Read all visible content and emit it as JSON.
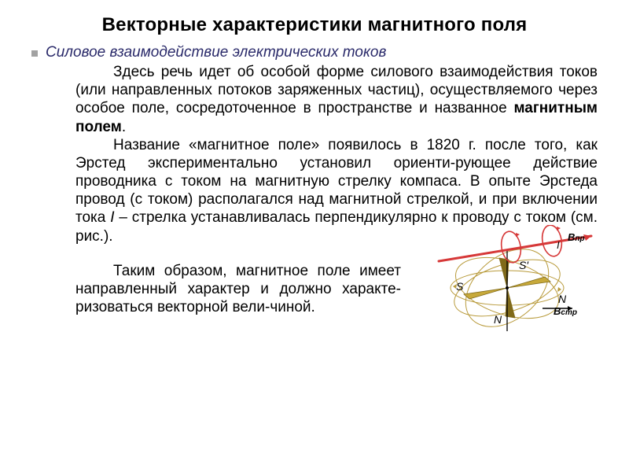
{
  "title": "Векторные характеристики магнитного поля",
  "subtitle": "Силовое взаимодействие электрических токов",
  "para1_a": "Здесь речь идет об особой форме силового взаимодействия токов (или направленных потоков заряженных частиц), осуществляемого через особое поле, сосредоточенное в пространстве и названное ",
  "para1_bold": "магнитным полем",
  "para1_b": ".",
  "para2_a": "Название «магнитное поле» появилось в 1820 г. после того, как Эрстед экспериментально установил ориенти-рующее действие проводника с током на магнитную стрелку компаса. В опыте Эрстеда провод (с током) располагался над магнитной стрелкой, и при включении тока ",
  "para2_ital": "I",
  "para2_b": " – стрелка устанавливалась перпендикулярно к проводу с током (см. рис.).",
  "para3": "Таким образом, магнитное поле имеет направленный характер и должно характе-ризоваться векторной вели-чиной.",
  "figure": {
    "wire_color": "#d63838",
    "loop_color": "#d63838",
    "orbit_color": "#b89a3a",
    "needle_fill": "#c7a93a",
    "needle_stroke": "#806a1a",
    "axis_color": "#000000",
    "label_B": "B",
    "label_B_pr_sub": "пр",
    "label_B_str_sub": "стр",
    "label_I": "I",
    "label_N": "N",
    "label_S": "S",
    "label_Sprime": "S′",
    "label_Nprime": "N"
  }
}
